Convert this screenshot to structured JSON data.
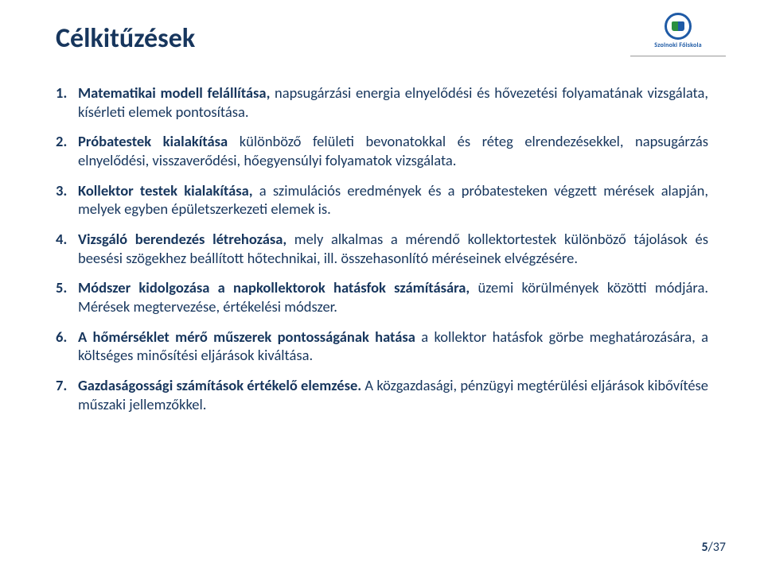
{
  "title": "Célkitűzések",
  "logo": {
    "label": "Szolnoki Főiskola"
  },
  "colors": {
    "text": "#17365d",
    "logo_border": "#1f5ba6",
    "logo_green": "#2b8f3f",
    "background": "#ffffff"
  },
  "typography": {
    "title_fontsize": 34,
    "body_fontsize": 18.5,
    "font_family": "Calibri"
  },
  "items": [
    {
      "lead": "Matematikai modell felállítása,",
      "rest": " napsugárzási energia elnyelődési és hővezetési folyamatának vizsgálata, kísérleti elemek pontosítása."
    },
    {
      "lead": "Próbatestek kialakítása",
      "rest": " különböző felületi bevonatokkal és réteg elrendezésekkel, napsugárzás elnyelődési, visszaverődési, hőegyensúlyi folyamatok vizsgálata."
    },
    {
      "lead": "Kollektor testek kialakítása,",
      "rest": " a szimulációs eredmények és a próbatesteken végzett mérések alapján, melyek egyben épületszerkezeti elemek is."
    },
    {
      "lead": "Vizsgáló berendezés létrehozása,",
      "rest": " mely alkalmas a mérendő kollektortestek különböző tájolások és beesési szögekhez beállított hőtechnikai, ill. összehasonlító méréseinek elvégzésére."
    },
    {
      "lead": "Módszer kidolgozása a napkollektorok hatásfok számítására,",
      "rest": " üzemi körülmények közötti módjára. Mérések megtervezése, értékelési módszer."
    },
    {
      "lead": "A hőmérséklet mérő műszerek pontosságának hatása",
      "rest": " a kollektor hatásfok görbe meghatározására, a költséges minősítési eljárások kiváltása."
    },
    {
      "lead": "Gazdaságossági számítások értékelő elemzése.",
      "rest": " A közgazdasági, pénzügyi megtérülési eljárások kibővítése műszaki jellemzőkkel."
    }
  ],
  "page": {
    "current": "5",
    "sep": "/",
    "total": "37"
  }
}
